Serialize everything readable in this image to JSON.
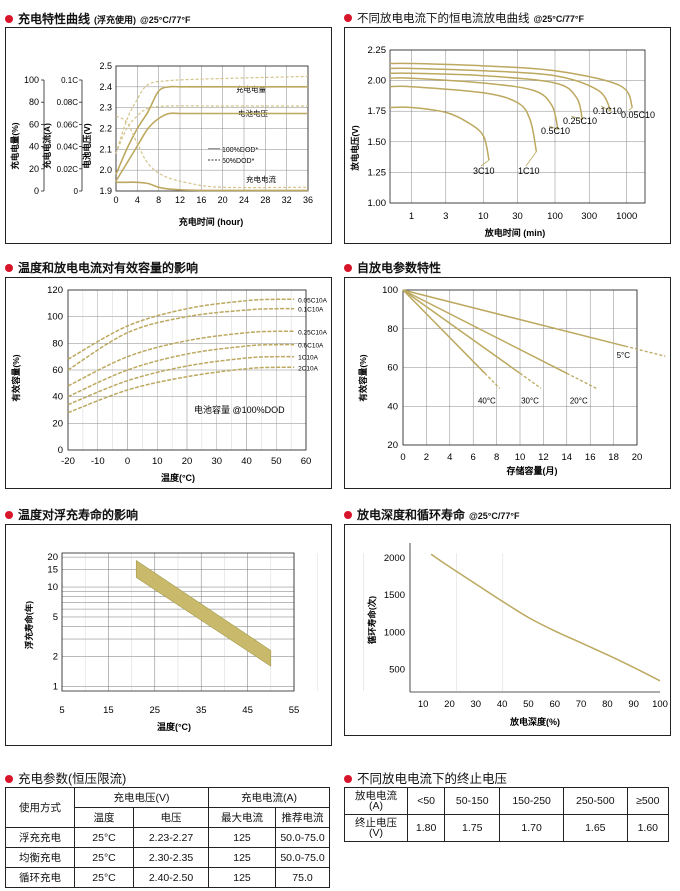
{
  "colors": {
    "curve": "#bca85e",
    "curve_light": "#d4c48a",
    "band": "#c8ba6a",
    "grid": "#333333",
    "bullet": "#d6142a"
  },
  "charts": {
    "charge": {
      "title": "充电特性曲线",
      "title_note": "(浮充使用)",
      "condition": "@25°C/77°F",
      "xlabel": "充电时间 (hour)",
      "ylabel_capacity": "充电电量(%)",
      "ylabel_current": "充电电流(A)",
      "ylabel_voltage": "电池电压(V)",
      "x_ticks": [
        "0",
        "4",
        "8",
        "12",
        "16",
        "20",
        "24",
        "28",
        "32",
        "36"
      ],
      "capacity_ticks": [
        "100",
        "80",
        "60",
        "40",
        "20",
        "0"
      ],
      "current_ticks": [
        "0.1C",
        "0.08C",
        "0.06C",
        "0.04C",
        "0.02C",
        "0"
      ],
      "voltage_ticks": [
        "2.5",
        "2.4",
        "2.3",
        "2.2",
        "2.1",
        "2.0",
        "1.9"
      ],
      "labels": {
        "capacity": "充电电量",
        "voltage": "电池电压",
        "current": "充电电流"
      },
      "legend": [
        "100%DOD*",
        "50%DOD*"
      ],
      "chart_data": {
        "type": "line",
        "x_range": [
          0,
          36
        ],
        "voltage_range": [
          1.9,
          2.5
        ],
        "series": [
          {
            "name": "充电电量",
            "dod": "100%DOD*",
            "x": [
              0,
              2,
              4,
              6,
              8,
              10,
              12,
              16,
              20,
              24,
              28,
              32,
              36
            ],
            "y": [
              0.08,
              0.22,
              0.36,
              0.5,
              0.58,
              0.62,
              0.62,
              0.62,
              0.62,
              0.62,
              0.62,
              0.62,
              0.62
            ]
          },
          {
            "name": "电池电压",
            "dod": "100%DOD*",
            "x": [
              0,
              2,
              4,
              6,
              8,
              10,
              12,
              16,
              20,
              24,
              28,
              32,
              36
            ],
            "y": [
              1.98,
              2.1,
              2.2,
              2.28,
              2.38,
              2.4,
              2.4,
              2.4,
              2.4,
              2.4,
              2.4,
              2.4,
              2.4
            ]
          },
          {
            "name": "充电电流",
            "dod": "100%DOD*",
            "x": [
              0,
              2,
              4,
              6,
              8,
              10,
              12,
              16,
              20,
              24,
              28,
              32,
              36
            ],
            "y": [
              0.07,
              0.07,
              0.07,
              0.06,
              0.03,
              0.015,
              0.01,
              0.005,
              0.005,
              0.005,
              0.005,
              0.005,
              0.005
            ]
          }
        ]
      }
    },
    "discharge": {
      "title": "不同放电电流下的恒电流放电曲线",
      "condition": "@25°C/77°F",
      "xlabel": "放电时间 (min)",
      "ylabel": "放电电压(V)",
      "x_ticks": [
        "1",
        "3",
        "10",
        "30",
        "100",
        "300",
        "1000"
      ],
      "y_ticks": [
        "2.25",
        "2.00",
        "1.75",
        "1.50",
        "1.25",
        "1.00"
      ],
      "curve_labels": [
        "3C10",
        "1C10",
        "0.5C10",
        "0.25C10",
        "0.1C10",
        "0.05C10"
      ],
      "chart_data": {
        "type": "line",
        "x_scale": "log",
        "y_range": [
          1.0,
          2.25
        ],
        "series": [
          {
            "name": "3C10",
            "x": [
              0.5,
              1,
              3,
              6,
              10,
              12
            ],
            "y": [
              1.78,
              1.78,
              1.74,
              1.66,
              1.55,
              1.35
            ]
          },
          {
            "name": "1C10",
            "x": [
              0.5,
              1,
              10,
              30,
              45,
              55
            ],
            "y": [
              1.95,
              1.95,
              1.9,
              1.82,
              1.68,
              1.42
            ]
          },
          {
            "name": "0.5C10",
            "x": [
              0.5,
              1,
              10,
              50,
              90,
              110
            ],
            "y": [
              2.02,
              2.02,
              1.98,
              1.92,
              1.8,
              1.6
            ]
          },
          {
            "name": "0.25C10",
            "x": [
              0.5,
              1,
              10,
              100,
              200,
              240
            ],
            "y": [
              2.06,
              2.06,
              2.04,
              1.98,
              1.86,
              1.68
            ]
          },
          {
            "name": "0.1C10",
            "x": [
              0.5,
              1,
              10,
              100,
              400,
              600
            ],
            "y": [
              2.1,
              2.1,
              2.08,
              2.04,
              1.92,
              1.75
            ]
          },
          {
            "name": "0.05C10",
            "x": [
              0.5,
              1,
              10,
              100,
              800,
              1200
            ],
            "y": [
              2.14,
              2.14,
              2.12,
              2.08,
              1.96,
              1.78
            ]
          }
        ]
      }
    },
    "temperature": {
      "title": "温度和放电电流对有效容量的影响",
      "xlabel": "温度(°C)",
      "ylabel": "有效容量(%)",
      "note": "电池容量 @100%DOD",
      "x_ticks": [
        "-20",
        "-10",
        "0",
        "10",
        "20",
        "30",
        "40",
        "50",
        "60"
      ],
      "y_ticks": [
        "120",
        "100",
        "80",
        "60",
        "40",
        "20",
        "0"
      ],
      "curve_labels": [
        "0.05C10A",
        "0.1C10A",
        "0.25C10A",
        "0.6C10A",
        "1C10A",
        "2C10A"
      ],
      "chart_data": {
        "type": "line",
        "x_range": [
          -20,
          60
        ],
        "y_range": [
          0,
          120
        ],
        "series": [
          {
            "name": "0.05C10A",
            "x": [
              -20,
              0,
              20,
              40,
              50,
              56
            ],
            "y": [
              68,
              93,
              106,
              112,
              113,
              113
            ]
          },
          {
            "name": "0.1C10A",
            "x": [
              -20,
              0,
              20,
              40,
              50,
              56
            ],
            "y": [
              60,
              88,
              100,
              105,
              106,
              106
            ]
          },
          {
            "name": "0.25C10A",
            "x": [
              -20,
              0,
              20,
              40,
              50,
              56
            ],
            "y": [
              48,
              70,
              82,
              88,
              89,
              89
            ]
          },
          {
            "name": "0.6C10A",
            "x": [
              -20,
              0,
              20,
              40,
              50,
              56
            ],
            "y": [
              40,
              60,
              72,
              78,
              79,
              79
            ]
          },
          {
            "name": "1C10A",
            "x": [
              -20,
              0,
              20,
              40,
              50,
              56
            ],
            "y": [
              34,
              52,
              63,
              69,
              70,
              70
            ]
          },
          {
            "name": "2C10A",
            "x": [
              -20,
              0,
              20,
              40,
              50,
              56
            ],
            "y": [
              28,
              45,
              55,
              61,
              62,
              62
            ]
          }
        ]
      }
    },
    "self_discharge": {
      "title": "自放电参数特性",
      "xlabel": "存储容量(月)",
      "ylabel": "有效容量(%)",
      "x_ticks": [
        "0",
        "2",
        "4",
        "6",
        "8",
        "10",
        "12",
        "14",
        "16",
        "18",
        "20"
      ],
      "y_ticks": [
        "100",
        "80",
        "60",
        "40",
        "20"
      ],
      "curve_labels": [
        "5°C",
        "40°C",
        "30°C",
        "20°C"
      ],
      "chart_data": {
        "type": "line",
        "x_range": [
          0,
          20
        ],
        "y_range": [
          20,
          100
        ],
        "series": [
          {
            "name": "5°C",
            "x": [
              0,
              19
            ],
            "y": [
              100,
              71
            ]
          },
          {
            "name": "20°C",
            "x": [
              0,
              14
            ],
            "y": [
              100,
              57
            ]
          },
          {
            "name": "30°C",
            "x": [
              0,
              10
            ],
            "y": [
              100,
              57
            ]
          },
          {
            "name": "40°C",
            "x": [
              0,
              7
            ],
            "y": [
              100,
              57
            ]
          }
        ]
      }
    },
    "float_life": {
      "title": "温度对浮充寿命的影响",
      "xlabel": "温度(°C)",
      "ylabel": "浮充寿命(年)",
      "x_ticks": [
        "5",
        "15",
        "25",
        "35",
        "45",
        "55"
      ],
      "y_ticks": [
        "20",
        "15",
        "10",
        "5",
        "2",
        "1"
      ],
      "chart_data": {
        "type": "area",
        "x_range": [
          5,
          55
        ],
        "y_scale": "log",
        "series": [
          {
            "name": "upper",
            "x": [
              21,
              50
            ],
            "y": [
              18.5,
              2.3
            ]
          },
          {
            "name": "lower",
            "x": [
              21,
              50
            ],
            "y": [
              12.5,
              1.6
            ]
          }
        ]
      }
    },
    "cycle_life": {
      "title": "放电深度和循环寿命",
      "condition": "@25°C/77°F",
      "xlabel": "放电深度(%)",
      "ylabel": "循环寿命(次)",
      "x_ticks": [
        "10",
        "20",
        "30",
        "40",
        "50",
        "60",
        "70",
        "80",
        "90",
        "100"
      ],
      "y_ticks": [
        "2000",
        "1500",
        "1000",
        "500"
      ],
      "chart_data": {
        "type": "line",
        "x_range": [
          5,
          100
        ],
        "y_range": [
          200,
          2200
        ],
        "series": [
          {
            "x": [
              13,
              20,
              30,
              40,
              50,
              60,
              70,
              80,
              90,
              100
            ],
            "y": [
              2050,
              1880,
              1650,
              1420,
              1200,
              1020,
              860,
              700,
              530,
              350
            ]
          }
        ]
      }
    }
  },
  "tables": {
    "charge_params": {
      "title": "充电参数(恒压限流)",
      "header_use": "使用方式",
      "header_voltage": "充电电压(V)",
      "header_current": "充电电流(A)",
      "sub_temp": "温度",
      "sub_voltage": "电压",
      "sub_max": "最大电流",
      "sub_rec": "推荐电流",
      "rows": [
        {
          "mode": "浮充充电",
          "temp": "25°C",
          "voltage": "2.23-2.27",
          "max": "125",
          "rec": "50.0-75.0"
        },
        {
          "mode": "均衡充电",
          "temp": "25°C",
          "voltage": "2.30-2.35",
          "max": "125",
          "rec": "50.0-75.0"
        },
        {
          "mode": "循环充电",
          "temp": "25°C",
          "voltage": "2.40-2.50",
          "max": "125",
          "rec": "75.0"
        }
      ]
    },
    "cutoff": {
      "title": "不同放电电流下的终止电压",
      "row1_label": "放电电流",
      "row1_unit": "(A)",
      "row2_label": "终止电压",
      "row2_unit": "(V)",
      "currents": [
        "<50",
        "50-150",
        "150-250",
        "250-500",
        "≥500"
      ],
      "voltages": [
        "1.80",
        "1.75",
        "1.70",
        "1.65",
        "1.60"
      ]
    }
  }
}
